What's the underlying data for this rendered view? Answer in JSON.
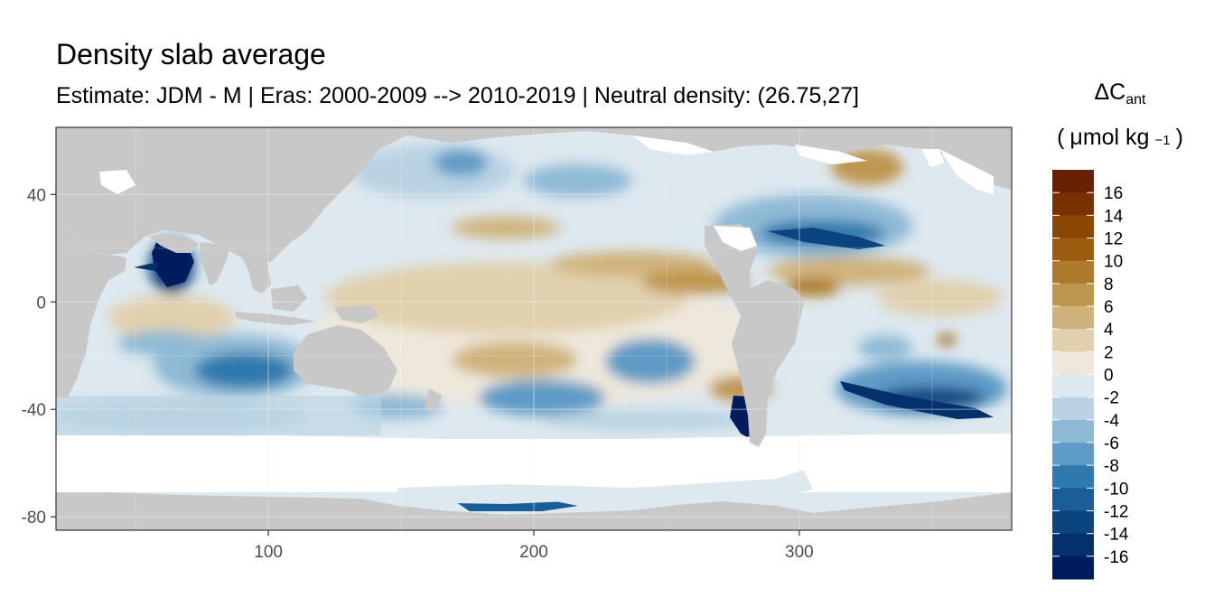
{
  "title": "Density slab average",
  "subtitle": "Estimate: JDM - M | Eras: 2000-2009 --> 2010-2019 | Neutral density: (26.75,27]",
  "legend": {
    "symbol": "ΔC",
    "subscript": "ant",
    "units_open": "(",
    "units_base": "μmol kg",
    "units_exp": "−1",
    "units_close": ")",
    "labels": [
      "16",
      "14",
      "12",
      "10",
      "8",
      "6",
      "4",
      "2",
      "0",
      "-2",
      "-4",
      "-6",
      "-8",
      "-10",
      "-12",
      "-14",
      "-16"
    ],
    "bin_colors": [
      "#672000",
      "#7a3100",
      "#8a4602",
      "#9c5c10",
      "#ad7a2c",
      "#bf9650",
      "#d0b37c",
      "#e1d0ad",
      "#eee8dc",
      "#dde8ef",
      "#b9d3e3",
      "#8fbad6",
      "#5e9bc6",
      "#2e79ad",
      "#1a5d98",
      "#0b447f",
      "#04306b",
      "#001c5c"
    ]
  },
  "chart_data": {
    "type": "heatmap",
    "title": "Density slab average",
    "subtitle": "Estimate: JDM - M | Eras: 2000-2009 --> 2010-2019 | Neutral density: (26.75,27]",
    "x_ticks": [
      100,
      200,
      300
    ],
    "y_ticks": [
      40,
      0,
      -40,
      -80
    ],
    "xlim": [
      20,
      380
    ],
    "ylim": [
      -85,
      65
    ],
    "grid": true,
    "colorbar_range": [
      -18,
      18
    ],
    "colorbar_step": 2,
    "land_color": "#c8c8c8",
    "nodata_color": "#ffffff",
    "legend_position": "right"
  }
}
